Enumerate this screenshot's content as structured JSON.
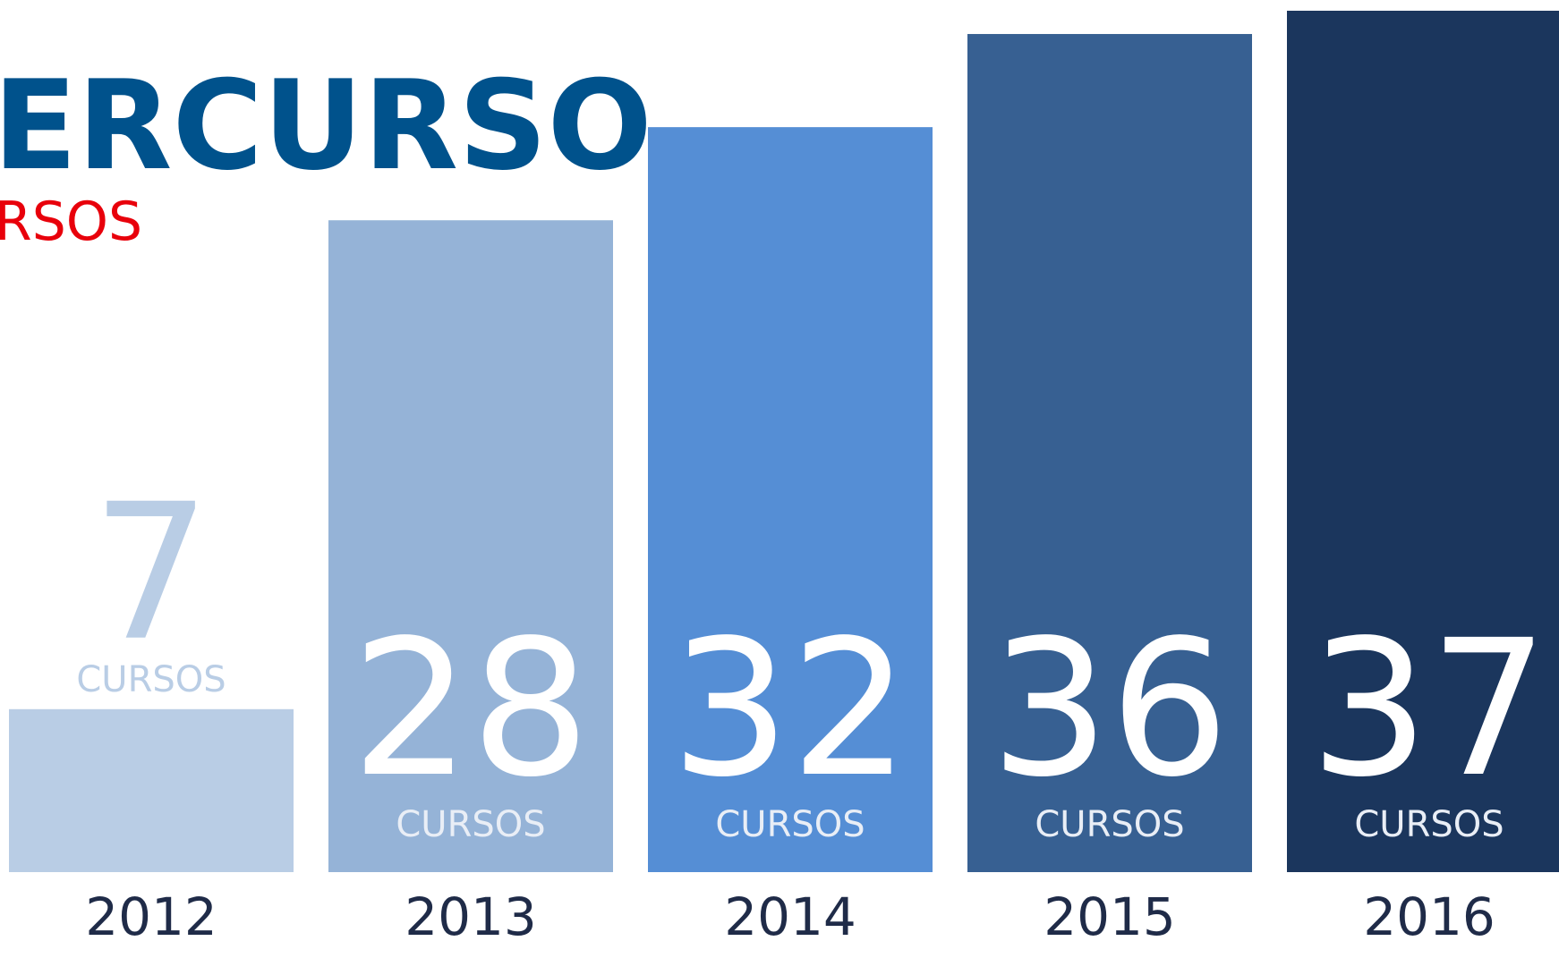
{
  "chart_data": {
    "type": "bar",
    "title": "ERCURSO",
    "subtitle": "RSOS",
    "categories": [
      "2012",
      "2013",
      "2014",
      "2015",
      "2016"
    ],
    "values": [
      7,
      28,
      32,
      36,
      37
    ],
    "unit_label": "CURSOS",
    "colors": [
      "#b9cde5",
      "#95b3d7",
      "#558ed5",
      "#376092",
      "#1b365d"
    ]
  }
}
